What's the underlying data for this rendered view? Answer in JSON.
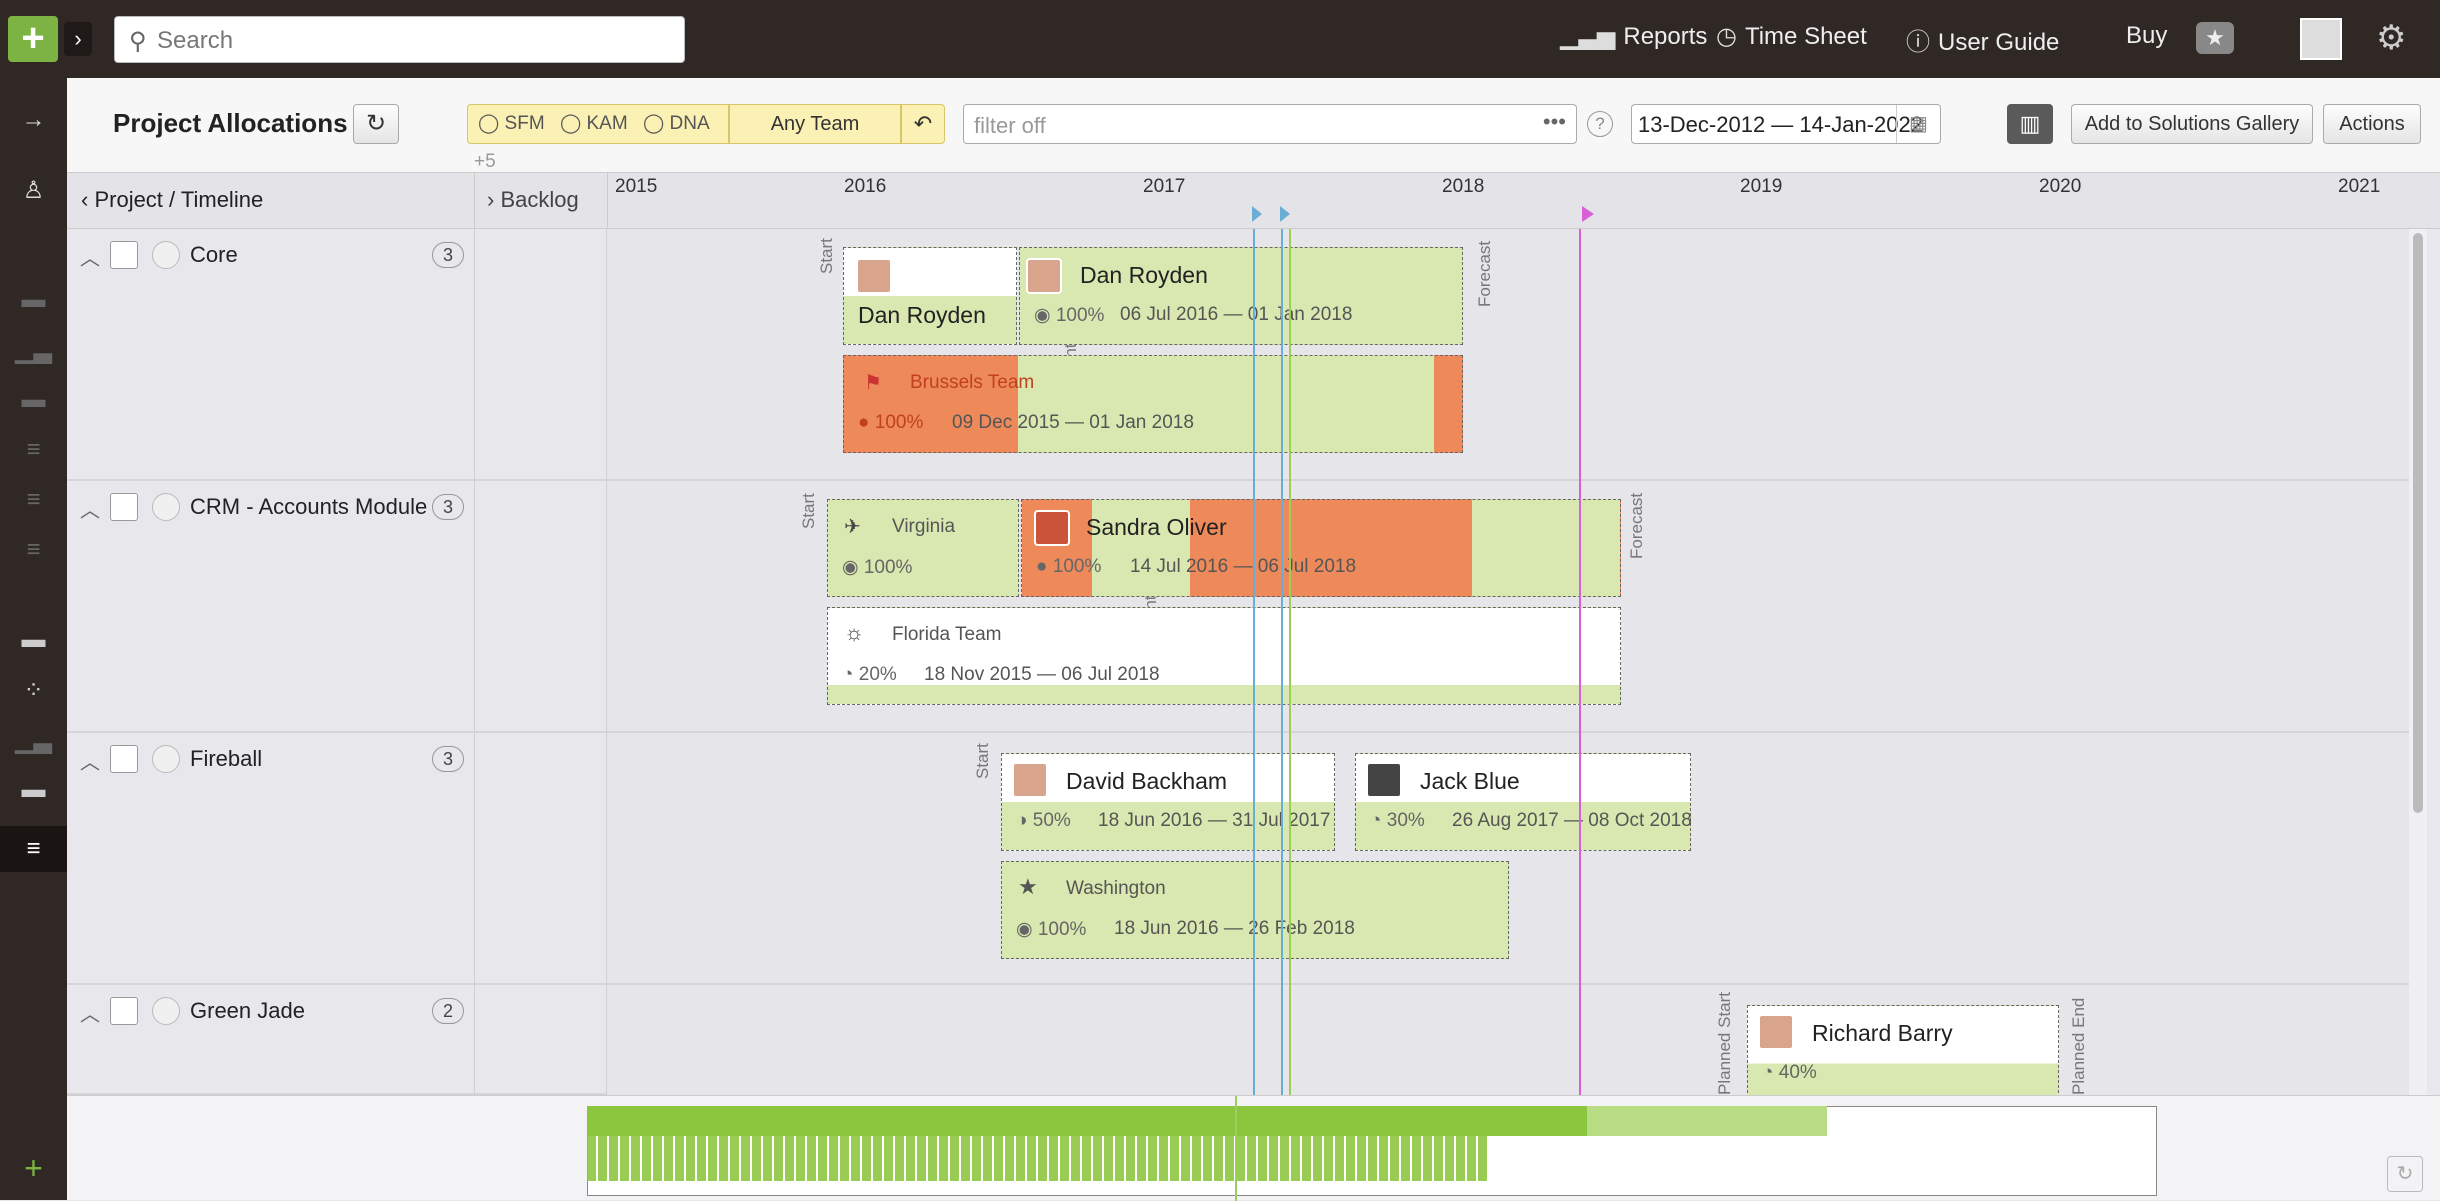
{
  "topbar": {
    "search_placeholder": "Search",
    "reports": "Reports",
    "timesheet": "Time Sheet",
    "user_guide": "User Guide",
    "buy": "Buy"
  },
  "toolbar": {
    "title": "Project Allocations",
    "filters": [
      "SFM",
      "KAM",
      "DNA"
    ],
    "filters_more": "+5",
    "team": "Any Team",
    "filter_placeholder": "filter off",
    "date_range": "13-Dec-2012 — 14-Jan-2022",
    "gallery": "Add to Solutions Gallery",
    "actions": "Actions"
  },
  "header": {
    "project_timeline": "Project / Timeline",
    "backlog": "Backlog",
    "years": [
      "2015",
      "2016",
      "2017",
      "2018",
      "2019",
      "2020",
      "2021"
    ]
  },
  "rows": [
    {
      "name": "Core",
      "count": "3"
    },
    {
      "name": "CRM - Accounts Module",
      "count": "3"
    },
    {
      "name": "Fireball",
      "count": "3"
    },
    {
      "name": "Green Jade",
      "count": "2"
    }
  ],
  "bars": {
    "core_dan1": {
      "name": "Dan Royden"
    },
    "core_dan2": {
      "name": "Dan Royden",
      "pct": "100%",
      "dates": "06 Jul 2016 — 01 Jan 2018"
    },
    "brussels": {
      "name": "Brussels Team",
      "pct": "100%",
      "dates": "09 Dec 2015 — 01 Jan 2018"
    },
    "virginia": {
      "name": "Virginia",
      "pct": "100%"
    },
    "sandra": {
      "name": "Sandra Oliver",
      "pct": "100%",
      "dates": "14 Jul 2016 — 06 Jul 2018"
    },
    "florida": {
      "name": "Florida Team",
      "pct": "20%",
      "dates": "18 Nov 2015 — 06 Jul 2018"
    },
    "david": {
      "name": "David Backham",
      "pct": "50%",
      "dates": "18 Jun 2016 — 31 Jul 2017"
    },
    "jack": {
      "name": "Jack Blue",
      "pct": "30%",
      "dates": "26 Aug 2017 — 08 Oct 2018"
    },
    "washington": {
      "name": "Washington",
      "pct": "100%",
      "dates": "18 Jun 2016 — 26 Feb 2018"
    },
    "richard": {
      "name": "Richard Barry",
      "pct": "40%"
    }
  },
  "markers": {
    "start": "Start",
    "forecast": "Forecast",
    "anticipated_end": "Anticipated End",
    "planned_start": "Planned Start",
    "planned_end": "Planned End"
  },
  "colors": {
    "green": "#d8e8b0",
    "orange": "#ee8a5a",
    "accent": "#7cb342",
    "blue_line": "#6aaed6",
    "pink_line": "#d95fd6"
  }
}
